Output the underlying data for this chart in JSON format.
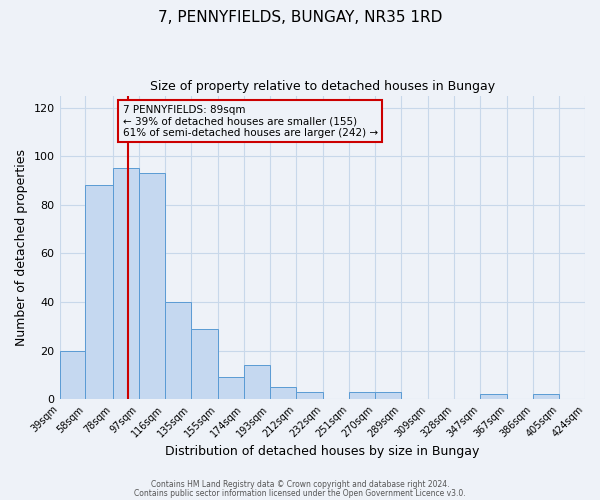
{
  "title": "7, PENNYFIELDS, BUNGAY, NR35 1RD",
  "subtitle": "Size of property relative to detached houses in Bungay",
  "xlabel": "Distribution of detached houses by size in Bungay",
  "ylabel": "Number of detached properties",
  "bar_values": [
    20,
    88,
    95,
    93,
    40,
    29,
    9,
    14,
    5,
    3,
    0,
    3,
    3,
    0,
    0,
    0,
    2,
    0,
    2,
    0
  ],
  "bin_edges": [
    39,
    58,
    78,
    97,
    116,
    135,
    155,
    174,
    193,
    212,
    232,
    251,
    270,
    289,
    309,
    328,
    347,
    367,
    386,
    405,
    424
  ],
  "tick_labels": [
    "39sqm",
    "58sqm",
    "78sqm",
    "97sqm",
    "116sqm",
    "135sqm",
    "155sqm",
    "174sqm",
    "193sqm",
    "212sqm",
    "232sqm",
    "251sqm",
    "270sqm",
    "289sqm",
    "309sqm",
    "328sqm",
    "347sqm",
    "367sqm",
    "386sqm",
    "405sqm",
    "424sqm"
  ],
  "bar_color": "#c5d8f0",
  "bar_edge_color": "#5a9bd4",
  "property_line_x": 89,
  "property_line_color": "#cc0000",
  "annotation_line1": "7 PENNYFIELDS: 89sqm",
  "annotation_line2": "← 39% of detached houses are smaller (155)",
  "annotation_line3": "61% of semi-detached houses are larger (242) →",
  "annotation_box_color": "#cc0000",
  "ylim": [
    0,
    125
  ],
  "yticks": [
    0,
    20,
    40,
    60,
    80,
    100,
    120
  ],
  "grid_color": "#c8d8ea",
  "bg_color": "#eef2f8",
  "footer_line1": "Contains HM Land Registry data © Crown copyright and database right 2024.",
  "footer_line2": "Contains public sector information licensed under the Open Government Licence v3.0."
}
